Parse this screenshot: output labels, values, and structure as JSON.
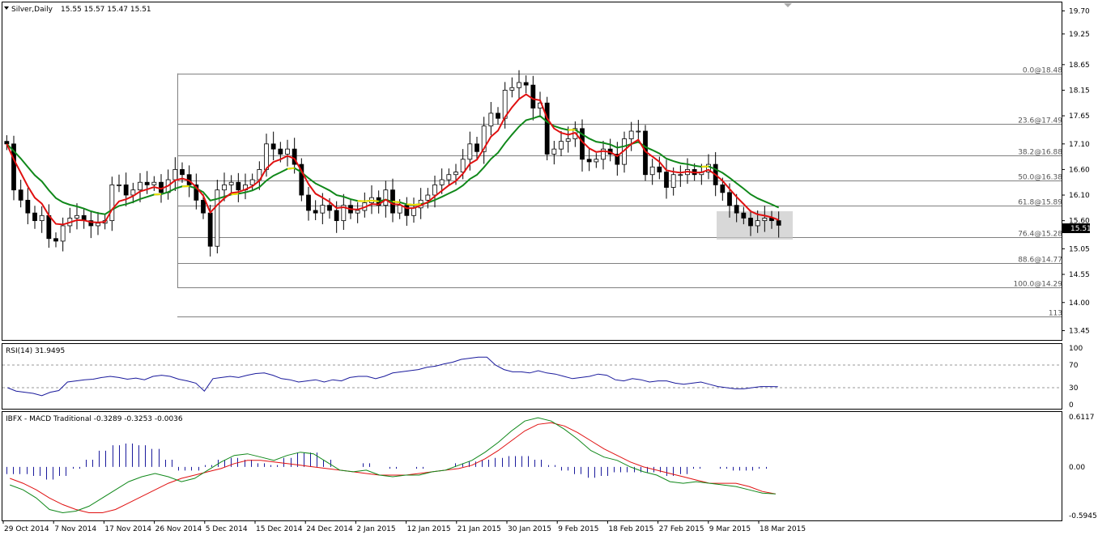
{
  "header": {
    "symbol_timeframe": "Silver,Daily",
    "ohlc": "15.55 15.57 15.47 15.51"
  },
  "colors": {
    "background": "#ffffff",
    "fast_ma": "#e01010",
    "slow_ma": "#10881a",
    "ma_highlight": "#f0e000",
    "candle_bull": "#ffffff",
    "candle_bear": "#000000",
    "fib_line": "#808080",
    "rsi_line": "#1a1a9c",
    "macd_line": "#10881a",
    "signal_line": "#e01010",
    "histogram": "#1a1a9c",
    "highlight_box": "#c8c8c8"
  },
  "chart_data": [
    {
      "type": "line",
      "name": "price",
      "title": "Silver,Daily",
      "ylim": [
        13.3,
        19.85
      ],
      "yticks": [
        "19.70",
        "19.25",
        "18.65",
        "18.15",
        "17.65",
        "17.10",
        "16.60",
        "16.10",
        "15.60",
        "15.05",
        "14.55",
        "14.00",
        "13.45"
      ],
      "current_price": "15.51",
      "fib_levels": [
        {
          "label": "0.0@18.48",
          "value": 18.48
        },
        {
          "label": "23.6@17.49",
          "value": 17.49
        },
        {
          "label": "38.2@16.88",
          "value": 16.88
        },
        {
          "label": "50.0@16.38",
          "value": 16.38
        },
        {
          "label": "61.8@15.89",
          "value": 15.89
        },
        {
          "label": "76.4@15.28",
          "value": 15.28
        },
        {
          "label": "88.6@14.77",
          "value": 14.77
        },
        {
          "label": "100.0@14.29",
          "value": 14.29
        },
        {
          "label": "113",
          "value": 13.72
        }
      ],
      "x_labels": [
        "29 Oct 2014",
        "7 Nov 2014",
        "17 Nov 2014",
        "26 Nov 2014",
        "5 Dec 2014",
        "15 Dec 2014",
        "24 Dec 2014",
        "2 Jan 2015",
        "12 Jan 2015",
        "21 Jan 2015",
        "30 Jan 2015",
        "9 Feb 2015",
        "18 Feb 2015",
        "27 Feb 2015",
        "9 Mar 2015",
        "18 Mar 2015"
      ],
      "closes": [
        17.1,
        16.2,
        16.0,
        15.75,
        15.6,
        15.7,
        15.25,
        15.2,
        15.5,
        15.65,
        15.7,
        15.6,
        15.5,
        15.55,
        15.6,
        16.3,
        16.3,
        16.1,
        16.2,
        16.35,
        16.3,
        16.35,
        16.15,
        16.4,
        16.6,
        16.5,
        16.3,
        16.0,
        15.75,
        15.1,
        16.2,
        16.3,
        16.35,
        16.2,
        16.3,
        16.4,
        16.6,
        17.1,
        17.0,
        16.9,
        17.0,
        16.7,
        16.1,
        15.8,
        15.75,
        15.9,
        15.8,
        15.6,
        15.9,
        15.75,
        15.8,
        15.95,
        16.05,
        15.9,
        16.2,
        15.75,
        15.9,
        15.7,
        15.85,
        16.0,
        16.1,
        16.3,
        16.4,
        16.5,
        16.55,
        16.8,
        17.1,
        16.95,
        17.45,
        17.7,
        17.6,
        18.15,
        18.2,
        18.3,
        18.25,
        17.8,
        17.9,
        16.9,
        17.0,
        17.15,
        17.2,
        17.4,
        16.8,
        16.75,
        16.8,
        17.0,
        16.9,
        16.7,
        17.2,
        17.35,
        17.35,
        16.5,
        16.65,
        16.55,
        16.25,
        16.5,
        16.5,
        16.6,
        16.5,
        16.55,
        16.7,
        16.3,
        16.15,
        15.9,
        15.75,
        15.65,
        15.5,
        15.6,
        15.65,
        15.6,
        15.51
      ]
    },
    {
      "type": "line",
      "name": "RSI(14)",
      "title": "RSI(14) 31.9495",
      "ylim": [
        0,
        100
      ],
      "yticks": [
        "100",
        "70",
        "30",
        "0"
      ],
      "levels": [
        70,
        30
      ],
      "values": [
        30,
        24,
        22,
        20,
        16,
        22,
        25,
        40,
        42,
        44,
        45,
        48,
        50,
        48,
        45,
        47,
        44,
        50,
        52,
        50,
        45,
        42,
        38,
        24,
        46,
        48,
        50,
        48,
        52,
        55,
        56,
        52,
        46,
        44,
        40,
        42,
        44,
        40,
        44,
        42,
        48,
        50,
        50,
        46,
        50,
        56,
        58,
        60,
        62,
        66,
        68,
        72,
        75,
        80,
        82,
        84,
        84,
        70,
        62,
        58,
        58,
        56,
        60,
        56,
        54,
        50,
        46,
        48,
        50,
        54,
        52,
        44,
        42,
        46,
        44,
        40,
        42,
        42,
        38,
        36,
        38,
        40,
        36,
        32,
        30,
        28,
        28,
        30,
        32,
        32,
        31.9
      ]
    },
    {
      "type": "bar",
      "name": "IBFX - MACD Traditional",
      "title": "IBFX - MACD Traditional -0.3289 -0.3253 -0.0036",
      "ylim": [
        -0.5945,
        0.6117
      ],
      "yticks": [
        "0.6117",
        "0.00",
        "-0.5945"
      ],
      "series": [
        {
          "name": "MACD",
          "values": [
            -0.22,
            -0.28,
            -0.38,
            -0.52,
            -0.56,
            -0.54,
            -0.48,
            -0.38,
            -0.28,
            -0.18,
            -0.12,
            -0.08,
            -0.12,
            -0.18,
            -0.14,
            -0.04,
            0.06,
            0.14,
            0.16,
            0.12,
            0.08,
            0.14,
            0.18,
            0.16,
            0.06,
            -0.04,
            -0.06,
            -0.04,
            -0.1,
            -0.12,
            -0.1,
            -0.1,
            -0.06,
            -0.04,
            0.02,
            0.08,
            0.18,
            0.3,
            0.44,
            0.56,
            0.6,
            0.56,
            0.46,
            0.34,
            0.2,
            0.12,
            0.08,
            0.0,
            -0.06,
            -0.1,
            -0.18,
            -0.2,
            -0.18,
            -0.2,
            -0.22,
            -0.24,
            -0.28,
            -0.32,
            -0.33
          ]
        },
        {
          "name": "Signal",
          "values": [
            -0.14,
            -0.2,
            -0.28,
            -0.38,
            -0.46,
            -0.52,
            -0.56,
            -0.56,
            -0.52,
            -0.44,
            -0.36,
            -0.28,
            -0.2,
            -0.14,
            -0.1,
            -0.06,
            -0.02,
            0.04,
            0.08,
            0.08,
            0.06,
            0.04,
            0.02,
            0.0,
            -0.02,
            -0.04,
            -0.06,
            -0.08,
            -0.1,
            -0.1,
            -0.1,
            -0.08,
            -0.06,
            -0.04,
            -0.02,
            0.02,
            0.1,
            0.2,
            0.32,
            0.44,
            0.52,
            0.54,
            0.5,
            0.42,
            0.32,
            0.22,
            0.14,
            0.06,
            0.0,
            -0.04,
            -0.08,
            -0.12,
            -0.16,
            -0.2,
            -0.2,
            -0.2,
            -0.24,
            -0.3,
            -0.33
          ]
        },
        {
          "name": "Histogram",
          "values": [
            -0.08,
            -0.08,
            -0.1,
            -0.14,
            -0.1,
            -0.02,
            0.08,
            0.18,
            0.24,
            0.26,
            0.24,
            0.2,
            0.08,
            -0.04,
            -0.04,
            0.02,
            0.08,
            0.1,
            0.08,
            0.04,
            0.02,
            0.1,
            0.16,
            0.16,
            0.08,
            0.0,
            0.0,
            0.04,
            0.0,
            -0.02,
            0.0,
            -0.02,
            0.0,
            0.0,
            0.04,
            0.06,
            0.08,
            0.1,
            0.12,
            0.12,
            0.08,
            0.02,
            -0.04,
            -0.08,
            -0.12,
            -0.1,
            -0.06,
            -0.06,
            -0.06,
            -0.06,
            -0.1,
            -0.08,
            -0.02,
            0.0,
            -0.02,
            -0.04,
            -0.04,
            -0.02,
            0.0
          ]
        }
      ]
    }
  ]
}
